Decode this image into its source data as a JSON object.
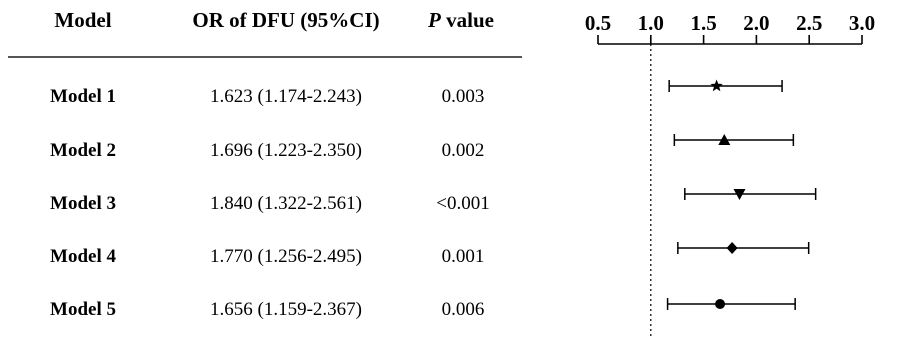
{
  "headers": {
    "model": "Model",
    "or": "OR of DFU (95%CI)",
    "p_italic": "P",
    "p_rest": " value"
  },
  "rows": [
    {
      "model": "Model 1",
      "or_text": "1.623 (1.174-2.243)",
      "p": "0.003",
      "marker": "star"
    },
    {
      "model": "Model 2",
      "or_text": "1.696 (1.223-2.350)",
      "p": "0.002",
      "marker": "triangle-up"
    },
    {
      "model": "Model 3",
      "or_text": "1.840 (1.322-2.561)",
      "p": "<0.001",
      "marker": "triangle-down"
    },
    {
      "model": "Model 4",
      "or_text": "1.770 (1.256-2.495)",
      "p": "0.001",
      "marker": "diamond"
    },
    {
      "model": "Model 5",
      "or_text": "1.656 (1.159-2.367)",
      "p": "0.006",
      "marker": "circle"
    }
  ],
  "chart_data": {
    "type": "forest",
    "categories": [
      "Model 1",
      "Model 2",
      "Model 3",
      "Model 4",
      "Model 5"
    ],
    "or": [
      1.623,
      1.696,
      1.84,
      1.77,
      1.656
    ],
    "ci_low": [
      1.174,
      1.223,
      1.322,
      1.256,
      1.159
    ],
    "ci_high": [
      2.243,
      2.35,
      2.561,
      2.495,
      2.367
    ],
    "xticks": [
      "0.5",
      "1.0",
      "1.5",
      "2.0",
      "2.5",
      "3.0"
    ],
    "xlim": [
      0.5,
      3.0
    ],
    "reference_line": 1.0,
    "axis_position": "top",
    "grid": false,
    "colors": {
      "ink": "#000000",
      "rule": "#555555"
    }
  }
}
